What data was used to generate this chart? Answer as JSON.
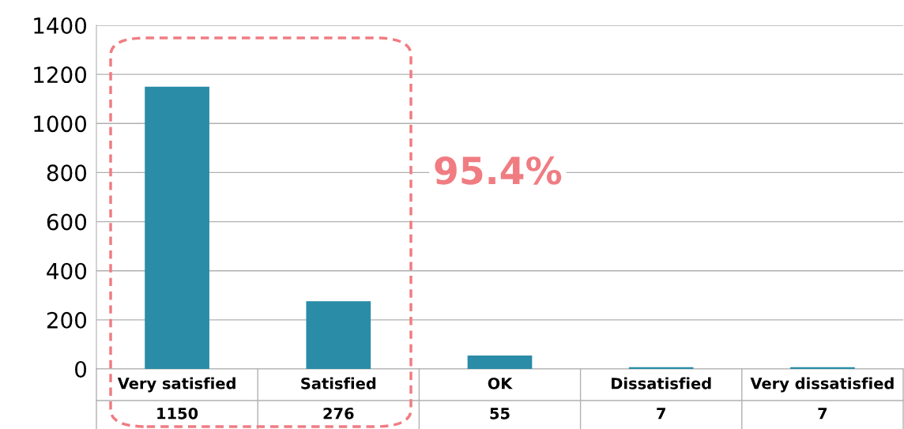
{
  "chart_data": {
    "type": "bar",
    "categories": [
      "Very satisfied",
      "Satisfied",
      "OK",
      "Dissatisfied",
      "Very dissatisfied"
    ],
    "values": [
      1150,
      276,
      55,
      7,
      7
    ],
    "color": "#2a8ca6",
    "ylim": [
      0,
      1400
    ],
    "yticks": [
      0,
      200,
      400,
      600,
      800,
      1000,
      1200,
      1400
    ],
    "grid": "y",
    "data_labels": true,
    "annotations": [
      "95.4%"
    ]
  }
}
